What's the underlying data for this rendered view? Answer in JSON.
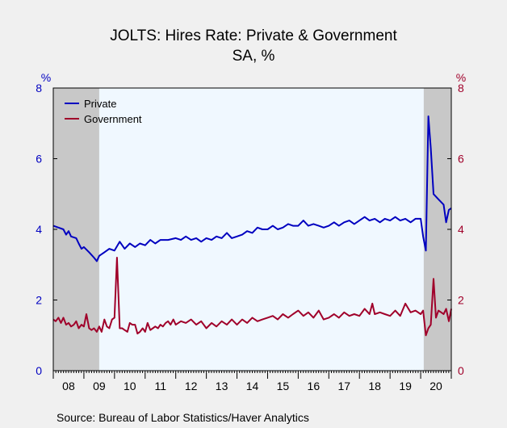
{
  "chart_data": {
    "type": "line",
    "title": "JOLTS: Hires Rate: Private & Government",
    "subtitle": "SA, %",
    "source": "Source:  Bureau of Labor Statistics/Haver Analytics",
    "y_left": {
      "unit": "%",
      "ylim": [
        0,
        8
      ],
      "ticks": [
        "0",
        "2",
        "4",
        "6",
        "8"
      ],
      "color": "#0000c0"
    },
    "y_right": {
      "unit": "%",
      "ylim": [
        0,
        8
      ],
      "ticks": [
        "0",
        "2",
        "4",
        "6",
        "8"
      ],
      "color": "#a0002a"
    },
    "x_labels": [
      "08",
      "09",
      "10",
      "11",
      "12",
      "13",
      "14",
      "15",
      "16",
      "17",
      "18",
      "19",
      "20"
    ],
    "x_range": [
      2008.0,
      2021.0
    ],
    "recessions": [
      [
        2008.0,
        2009.5
      ],
      [
        2020.1,
        2021.0
      ]
    ],
    "legend": {
      "placement": "top-left"
    },
    "series": [
      {
        "name": "Private",
        "color": "#0000c0",
        "points": [
          [
            2008.0,
            4.1
          ],
          [
            2008.17,
            4.05
          ],
          [
            2008.33,
            4.0
          ],
          [
            2008.42,
            3.85
          ],
          [
            2008.5,
            3.95
          ],
          [
            2008.58,
            3.8
          ],
          [
            2008.75,
            3.75
          ],
          [
            2008.83,
            3.6
          ],
          [
            2008.92,
            3.45
          ],
          [
            2009.0,
            3.5
          ],
          [
            2009.17,
            3.35
          ],
          [
            2009.33,
            3.2
          ],
          [
            2009.42,
            3.1
          ],
          [
            2009.5,
            3.25
          ],
          [
            2009.67,
            3.35
          ],
          [
            2009.83,
            3.45
          ],
          [
            2010.0,
            3.4
          ],
          [
            2010.17,
            3.65
          ],
          [
            2010.33,
            3.45
          ],
          [
            2010.5,
            3.6
          ],
          [
            2010.67,
            3.5
          ],
          [
            2010.83,
            3.6
          ],
          [
            2011.0,
            3.55
          ],
          [
            2011.17,
            3.7
          ],
          [
            2011.33,
            3.6
          ],
          [
            2011.5,
            3.7
          ],
          [
            2011.75,
            3.7
          ],
          [
            2012.0,
            3.75
          ],
          [
            2012.17,
            3.7
          ],
          [
            2012.33,
            3.8
          ],
          [
            2012.5,
            3.7
          ],
          [
            2012.67,
            3.75
          ],
          [
            2012.83,
            3.65
          ],
          [
            2013.0,
            3.75
          ],
          [
            2013.17,
            3.7
          ],
          [
            2013.33,
            3.8
          ],
          [
            2013.5,
            3.75
          ],
          [
            2013.67,
            3.9
          ],
          [
            2013.83,
            3.75
          ],
          [
            2014.0,
            3.8
          ],
          [
            2014.17,
            3.85
          ],
          [
            2014.33,
            3.95
          ],
          [
            2014.5,
            3.9
          ],
          [
            2014.67,
            4.05
          ],
          [
            2014.83,
            4.0
          ],
          [
            2015.0,
            4.0
          ],
          [
            2015.17,
            4.1
          ],
          [
            2015.33,
            4.0
          ],
          [
            2015.5,
            4.05
          ],
          [
            2015.67,
            4.15
          ],
          [
            2015.83,
            4.1
          ],
          [
            2016.0,
            4.1
          ],
          [
            2016.17,
            4.25
          ],
          [
            2016.33,
            4.1
          ],
          [
            2016.5,
            4.15
          ],
          [
            2016.67,
            4.1
          ],
          [
            2016.83,
            4.05
          ],
          [
            2017.0,
            4.1
          ],
          [
            2017.17,
            4.2
          ],
          [
            2017.33,
            4.1
          ],
          [
            2017.5,
            4.2
          ],
          [
            2017.67,
            4.25
          ],
          [
            2017.83,
            4.15
          ],
          [
            2018.0,
            4.25
          ],
          [
            2018.17,
            4.35
          ],
          [
            2018.33,
            4.25
          ],
          [
            2018.5,
            4.3
          ],
          [
            2018.67,
            4.2
          ],
          [
            2018.83,
            4.3
          ],
          [
            2019.0,
            4.25
          ],
          [
            2019.17,
            4.35
          ],
          [
            2019.33,
            4.25
          ],
          [
            2019.5,
            4.3
          ],
          [
            2019.67,
            4.2
          ],
          [
            2019.83,
            4.3
          ],
          [
            2020.0,
            4.3
          ],
          [
            2020.08,
            3.8
          ],
          [
            2020.17,
            3.4
          ],
          [
            2020.25,
            7.2
          ],
          [
            2020.33,
            6.3
          ],
          [
            2020.42,
            5.0
          ],
          [
            2020.58,
            4.85
          ],
          [
            2020.75,
            4.7
          ],
          [
            2020.83,
            4.2
          ],
          [
            2020.92,
            4.55
          ],
          [
            2021.0,
            4.6
          ]
        ]
      },
      {
        "name": "Government",
        "color": "#a0002a",
        "points": [
          [
            2008.0,
            1.45
          ],
          [
            2008.08,
            1.4
          ],
          [
            2008.17,
            1.5
          ],
          [
            2008.25,
            1.35
          ],
          [
            2008.33,
            1.5
          ],
          [
            2008.42,
            1.3
          ],
          [
            2008.5,
            1.35
          ],
          [
            2008.58,
            1.25
          ],
          [
            2008.67,
            1.3
          ],
          [
            2008.75,
            1.4
          ],
          [
            2008.83,
            1.2
          ],
          [
            2008.92,
            1.3
          ],
          [
            2009.0,
            1.25
          ],
          [
            2009.08,
            1.6
          ],
          [
            2009.17,
            1.2
          ],
          [
            2009.25,
            1.15
          ],
          [
            2009.33,
            1.2
          ],
          [
            2009.42,
            1.1
          ],
          [
            2009.5,
            1.25
          ],
          [
            2009.58,
            1.1
          ],
          [
            2009.67,
            1.45
          ],
          [
            2009.75,
            1.25
          ],
          [
            2009.83,
            1.2
          ],
          [
            2009.92,
            1.45
          ],
          [
            2010.0,
            1.5
          ],
          [
            2010.08,
            3.2
          ],
          [
            2010.17,
            1.2
          ],
          [
            2010.25,
            1.2
          ],
          [
            2010.33,
            1.15
          ],
          [
            2010.42,
            1.1
          ],
          [
            2010.5,
            1.35
          ],
          [
            2010.58,
            1.3
          ],
          [
            2010.67,
            1.3
          ],
          [
            2010.75,
            1.05
          ],
          [
            2010.83,
            1.1
          ],
          [
            2010.92,
            1.2
          ],
          [
            2011.0,
            1.1
          ],
          [
            2011.08,
            1.35
          ],
          [
            2011.17,
            1.15
          ],
          [
            2011.25,
            1.2
          ],
          [
            2011.33,
            1.25
          ],
          [
            2011.42,
            1.2
          ],
          [
            2011.5,
            1.3
          ],
          [
            2011.58,
            1.25
          ],
          [
            2011.67,
            1.35
          ],
          [
            2011.75,
            1.4
          ],
          [
            2011.83,
            1.3
          ],
          [
            2011.92,
            1.45
          ],
          [
            2012.0,
            1.3
          ],
          [
            2012.17,
            1.4
          ],
          [
            2012.33,
            1.35
          ],
          [
            2012.5,
            1.45
          ],
          [
            2012.67,
            1.3
          ],
          [
            2012.83,
            1.4
          ],
          [
            2013.0,
            1.2
          ],
          [
            2013.17,
            1.35
          ],
          [
            2013.33,
            1.25
          ],
          [
            2013.5,
            1.4
          ],
          [
            2013.67,
            1.3
          ],
          [
            2013.83,
            1.45
          ],
          [
            2014.0,
            1.3
          ],
          [
            2014.17,
            1.45
          ],
          [
            2014.33,
            1.35
          ],
          [
            2014.5,
            1.5
          ],
          [
            2014.67,
            1.4
          ],
          [
            2014.83,
            1.45
          ],
          [
            2015.0,
            1.5
          ],
          [
            2015.17,
            1.55
          ],
          [
            2015.33,
            1.45
          ],
          [
            2015.5,
            1.6
          ],
          [
            2015.67,
            1.5
          ],
          [
            2015.83,
            1.6
          ],
          [
            2016.0,
            1.7
          ],
          [
            2016.17,
            1.55
          ],
          [
            2016.33,
            1.65
          ],
          [
            2016.5,
            1.5
          ],
          [
            2016.67,
            1.7
          ],
          [
            2016.83,
            1.45
          ],
          [
            2017.0,
            1.5
          ],
          [
            2017.17,
            1.6
          ],
          [
            2017.33,
            1.5
          ],
          [
            2017.5,
            1.65
          ],
          [
            2017.67,
            1.55
          ],
          [
            2017.83,
            1.6
          ],
          [
            2018.0,
            1.55
          ],
          [
            2018.17,
            1.75
          ],
          [
            2018.33,
            1.6
          ],
          [
            2018.42,
            1.9
          ],
          [
            2018.5,
            1.6
          ],
          [
            2018.67,
            1.65
          ],
          [
            2018.83,
            1.6
          ],
          [
            2019.0,
            1.55
          ],
          [
            2019.17,
            1.7
          ],
          [
            2019.33,
            1.55
          ],
          [
            2019.5,
            1.9
          ],
          [
            2019.67,
            1.65
          ],
          [
            2019.83,
            1.7
          ],
          [
            2020.0,
            1.6
          ],
          [
            2020.08,
            1.7
          ],
          [
            2020.17,
            1.0
          ],
          [
            2020.25,
            1.2
          ],
          [
            2020.33,
            1.3
          ],
          [
            2020.42,
            2.6
          ],
          [
            2020.5,
            1.5
          ],
          [
            2020.58,
            1.7
          ],
          [
            2020.67,
            1.65
          ],
          [
            2020.75,
            1.6
          ],
          [
            2020.83,
            1.75
          ],
          [
            2020.92,
            1.4
          ],
          [
            2021.0,
            1.75
          ]
        ]
      }
    ]
  }
}
